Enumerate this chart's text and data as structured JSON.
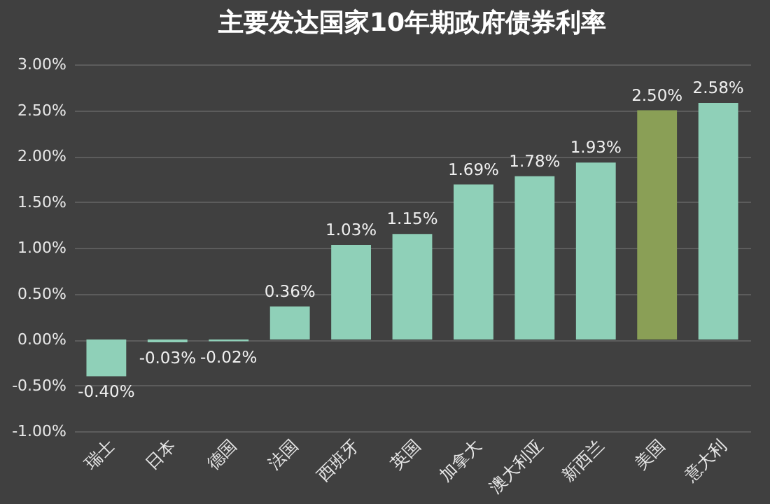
{
  "chart_data": {
    "type": "bar",
    "title": "主要发达国家10年期政府债券利率",
    "categories": [
      "瑞士",
      "日本",
      "德国",
      "法国",
      "西班牙",
      "英国",
      "加拿大",
      "澳大利亚",
      "新西兰",
      "美国",
      "意大利"
    ],
    "values": [
      -0.4,
      -0.03,
      -0.02,
      0.36,
      1.03,
      1.15,
      1.69,
      1.78,
      1.93,
      2.5,
      2.58
    ],
    "colors": [
      "#8fd0b8",
      "#8fd0b8",
      "#8fd0b8",
      "#8fd0b8",
      "#8fd0b8",
      "#8fd0b8",
      "#8fd0b8",
      "#8fd0b8",
      "#8fd0b8",
      "#8a9f56",
      "#8fd0b8"
    ],
    "value_labels": [
      "-0.40%",
      "-0.03%",
      "-0.02%",
      "0.36%",
      "1.03%",
      "1.15%",
      "1.69%",
      "1.78%",
      "1.93%",
      "2.50%",
      "2.58%"
    ],
    "ylim": [
      -1,
      3
    ],
    "yticks": [
      {
        "value": -1,
        "label": "-1.00%"
      },
      {
        "value": -0.5,
        "label": "-0.50%"
      },
      {
        "value": 0,
        "label": "0.00%"
      },
      {
        "value": 0.5,
        "label": "0.50%"
      },
      {
        "value": 1,
        "label": "1.00%"
      },
      {
        "value": 1.5,
        "label": "1.50%"
      },
      {
        "value": 2,
        "label": "2.00%"
      },
      {
        "value": 2.5,
        "label": "2.50%"
      },
      {
        "value": 3,
        "label": "3.00%"
      }
    ],
    "grid": true
  }
}
